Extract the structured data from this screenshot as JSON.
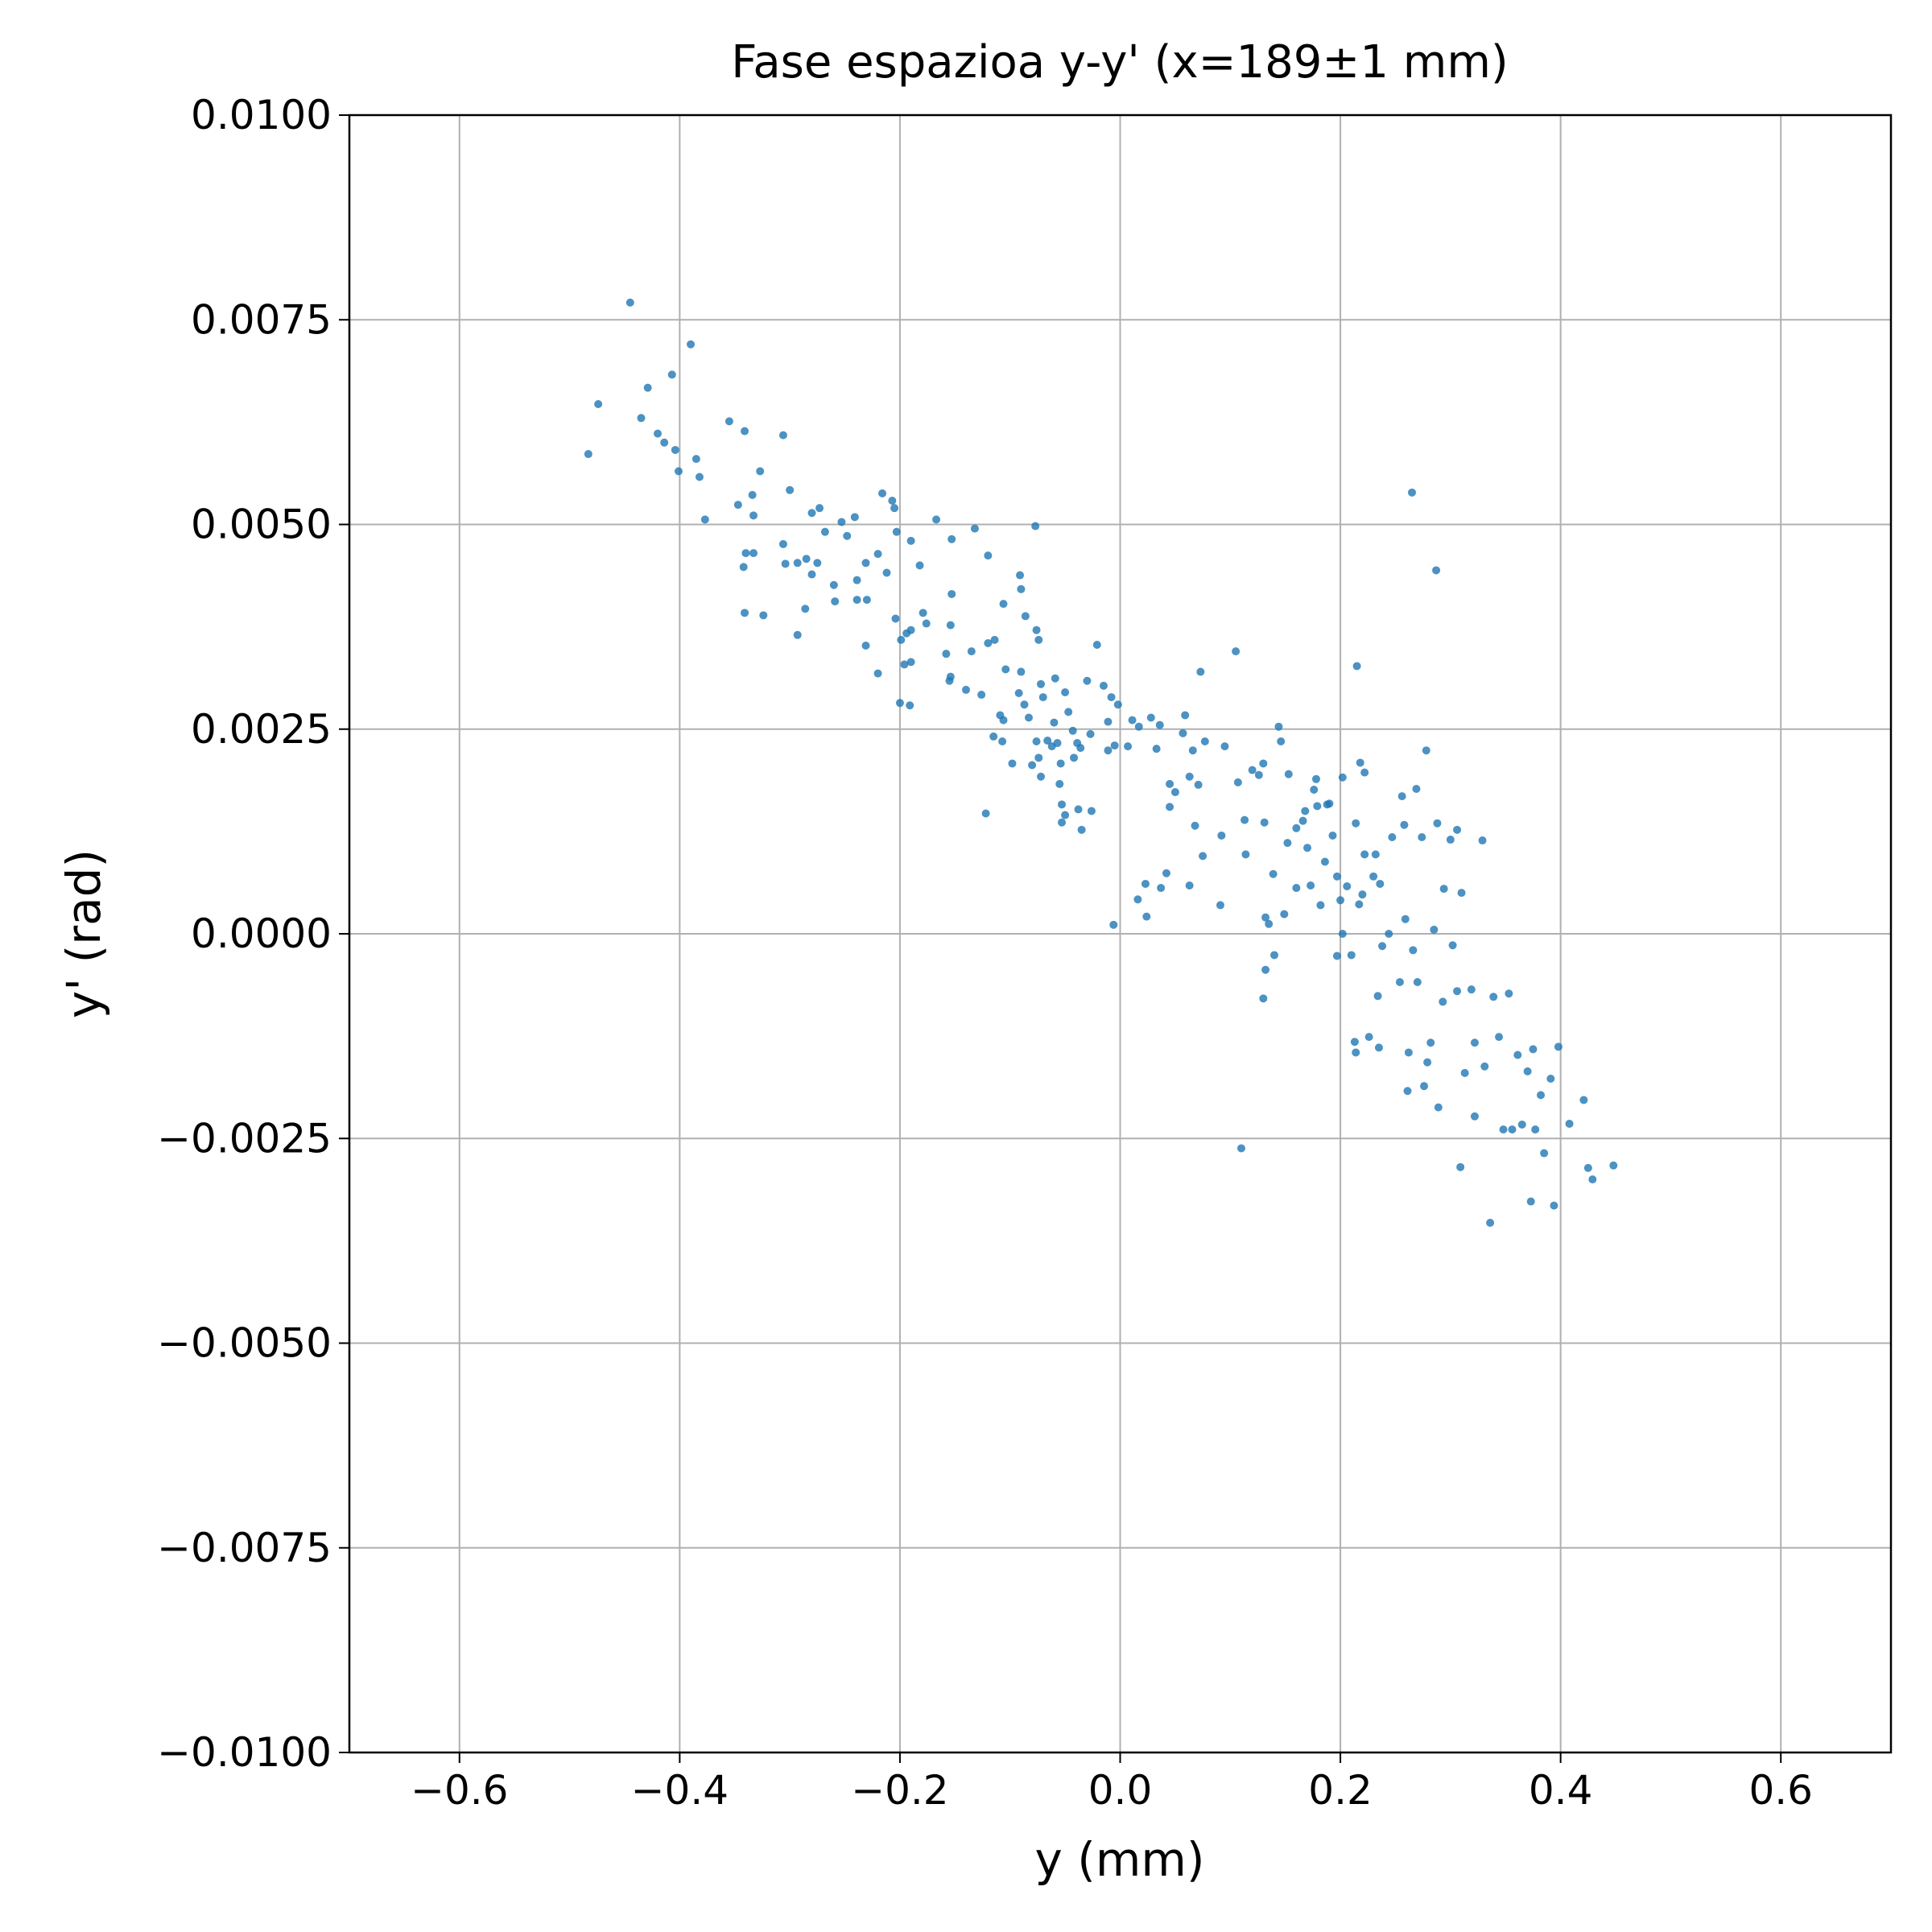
{
  "chart_data": {
    "type": "scatter",
    "title": "Fase espazioa y-y' (x=189±1 mm)",
    "x_label": "y (mm)",
    "y_label": "y' (rad)",
    "color": "#1f77b4",
    "grid": true,
    "xlim": [
      -0.7,
      0.7
    ],
    "ylim": [
      -0.01,
      0.01
    ],
    "xticks": [
      {
        "value": -0.6,
        "label": "−0.6"
      },
      {
        "value": -0.4,
        "label": "−0.4"
      },
      {
        "value": -0.2,
        "label": "−0.2"
      },
      {
        "value": 0,
        "label": "0.0"
      },
      0.2,
      0.4,
      0.6
    ],
    "yticks": [
      {
        "value": -0.01,
        "label": "−0.0100"
      },
      {
        "value": -0.0075,
        "label": "−0.0075"
      },
      {
        "value": -0.005,
        "label": "−0.0050"
      },
      {
        "value": -0.0025,
        "label": "−0.0025"
      },
      {
        "value": 0,
        "label": "0.0000"
      },
      0.0025,
      {
        "value": 0.005,
        "label": "0.0050"
      },
      0.0075,
      {
        "value": 0.01,
        "label": "0.0100"
      }
    ],
    "x": [
      -0.445,
      -0.474,
      -0.483,
      -0.429,
      -0.39,
      -0.407,
      -0.435,
      -0.42,
      -0.414,
      -0.404,
      -0.401,
      -0.385,
      -0.382,
      -0.377,
      -0.355,
      -0.341,
      -0.306,
      -0.327,
      -0.334,
      -0.347,
      -0.333,
      -0.3,
      -0.34,
      -0.333,
      -0.342,
      -0.306,
      -0.304,
      -0.341,
      -0.324,
      -0.293,
      -0.285,
      -0.28,
      -0.275,
      -0.28,
      -0.273,
      -0.268,
      -0.253,
      -0.248,
      -0.241,
      -0.286,
      -0.293,
      -0.26,
      -0.259,
      -0.239,
      -0.239,
      -0.231,
      -0.23,
      -0.231,
      -0.22,
      -0.216,
      -0.207,
      -0.205,
      -0.203,
      -0.19,
      -0.212,
      -0.22,
      -0.204,
      -0.199,
      -0.194,
      -0.19,
      -0.196,
      -0.19,
      -0.2,
      -0.191,
      -0.182,
      -0.179,
      -0.176,
      -0.167,
      -0.153,
      -0.153,
      -0.154,
      -0.158,
      -0.154,
      -0.155,
      -0.14,
      -0.132,
      -0.135,
      -0.126,
      -0.12,
      -0.12,
      -0.114,
      -0.106,
      -0.104,
      -0.115,
      -0.122,
      -0.109,
      -0.106,
      -0.107,
      -0.098,
      -0.091,
      -0.09,
      -0.09,
      -0.092,
      -0.087,
      -0.086,
      -0.077,
      -0.076,
      -0.074,
      -0.072,
      -0.07,
      -0.076,
      -0.074,
      -0.072,
      -0.08,
      -0.083,
      -0.066,
      -0.062,
      -0.059,
      -0.06,
      -0.057,
      -0.055,
      -0.053,
      -0.053,
      -0.05,
      -0.054,
      -0.05,
      -0.047,
      -0.043,
      -0.039,
      -0.042,
      -0.036,
      -0.038,
      -0.035,
      -0.03,
      -0.027,
      -0.026,
      -0.021,
      -0.015,
      -0.011,
      -0.011,
      -0.008,
      -0.002,
      -0.006,
      -0.005,
      0.007,
      0.011,
      0.017,
      0.016,
      0.023,
      0.024,
      0.028,
      0.036,
      0.033,
      0.037,
      0.042,
      0.045,
      0.045,
      0.05,
      0.057,
      0.059,
      0.063,
      0.066,
      0.068,
      0.071,
      0.073,
      0.063,
      0.075,
      0.077,
      0.092,
      0.095,
      0.091,
      0.105,
      0.107,
      0.11,
      0.113,
      0.114,
      0.12,
      0.126,
      0.13,
      0.131,
      0.132,
      0.13,
      0.132,
      0.135,
      0.14,
      0.139,
      0.144,
      0.146,
      0.149,
      0.152,
      0.153,
      0.16,
      0.16,
      0.166,
      0.168,
      0.17,
      0.173,
      0.176,
      0.178,
      0.179,
      0.182,
      0.186,
      0.188,
      0.19,
      0.193,
      0.197,
      0.197,
      0.2,
      0.202,
      0.202,
      0.206,
      0.21,
      0.213,
      0.214,
      0.215,
      0.214,
      0.217,
      0.218,
      0.22,
      0.222,
      0.222,
      0.226,
      0.23,
      0.232,
      0.234,
      0.235,
      0.236,
      0.238,
      0.244,
      0.247,
      0.254,
      0.256,
      0.258,
      0.259,
      0.261,
      0.262,
      0.265,
      0.266,
      0.269,
      0.27,
      0.274,
      0.276,
      0.278,
      0.279,
      0.282,
      0.285,
      0.287,
      0.288,
      0.289,
      0.293,
      0.294,
      0.3,
      0.302,
      0.306,
      0.306,
      0.309,
      0.31,
      0.313,
      0.319,
      0.322,
      0.322,
      0.329,
      0.331,
      0.336,
      0.339,
      0.344,
      0.348,
      0.353,
      0.356,
      0.361,
      0.365,
      0.37,
      0.373,
      0.375,
      0.377,
      0.382,
      0.385,
      0.391,
      0.394,
      0.398,
      0.408,
      0.421,
      0.425,
      0.429,
      0.448
    ],
    "values": [
      0.00771,
      0.00647,
      0.00586,
      0.00667,
      0.0072,
      0.00683,
      0.0063,
      0.00611,
      0.006,
      0.00591,
      0.00565,
      0.0058,
      0.00558,
      0.00506,
      0.00626,
      0.00614,
      0.00609,
      0.00565,
      0.00536,
      0.00524,
      0.00511,
      0.00542,
      0.00465,
      0.00465,
      0.00448,
      0.00476,
      0.00452,
      0.00392,
      0.00389,
      0.00453,
      0.00458,
      0.00439,
      0.00453,
      0.00514,
      0.0052,
      0.00491,
      0.00503,
      0.00486,
      0.00509,
      0.00397,
      0.00365,
      0.00426,
      0.00406,
      0.00432,
      0.00408,
      0.00453,
      0.00408,
      0.00352,
      0.00464,
      0.00538,
      0.00529,
      0.0052,
      0.00491,
      0.0048,
      0.00441,
      0.00318,
      0.00385,
      0.00359,
      0.00367,
      0.00371,
      0.00329,
      0.00332,
      0.00282,
      0.00279,
      0.0045,
      0.00392,
      0.00379,
      0.00506,
      0.00482,
      0.00415,
      0.00377,
      0.00342,
      0.00314,
      0.00309,
      0.00298,
      0.00495,
      0.00345,
      0.00292,
      0.00462,
      0.00355,
      0.00359,
      0.00403,
      0.00323,
      0.00241,
      0.00147,
      0.00267,
      0.00261,
      0.00235,
      0.00208,
      0.00438,
      0.00421,
      0.0032,
      0.00294,
      0.0028,
      0.00388,
      0.00498,
      0.00371,
      0.00359,
      0.00305,
      0.00289,
      0.00235,
      0.00215,
      0.00192,
      0.00206,
      0.00264,
      0.00236,
      0.00229,
      0.00312,
      0.00258,
      0.00233,
      0.00183,
      0.00158,
      0.00136,
      0.00145,
      0.00208,
      0.00295,
      0.00271,
      0.00248,
      0.00233,
      0.00215,
      0.00227,
      0.00152,
      0.00127,
      0.00309,
      0.00244,
      0.0015,
      0.00353,
      0.00303,
      0.00259,
      0.00224,
      0.00289,
      0.0028,
      0.00011,
      0.0023,
      0.00229,
      0.00261,
      0.00253,
      0.00042,
      0.00061,
      0.00021,
      0.00264,
      0.00255,
      0.00226,
      0.00056,
      0.00074,
      0.00183,
      0.00155,
      0.00173,
      0.00245,
      0.00267,
      0.00192,
      0.00224,
      0.00132,
      0.00182,
      0.0032,
      0.00059,
      0.00095,
      0.00235,
      0.0012,
      0.00229,
      0.00035,
      0.00345,
      0.00185,
      -0.00262,
      0.00139,
      0.00097,
      0.002,
      0.00194,
      0.00208,
      0.00136,
      0.0002,
      -0.00079,
      -0.00044,
      0.00012,
      -0.00026,
      0.00073,
      0.00253,
      0.00235,
      0.00024,
      0.00111,
      0.00195,
      0.00056,
      0.00129,
      0.00138,
      0.0015,
      0.00105,
      0.00059,
      0.00176,
      0.00189,
      0.00156,
      0.00035,
      0.00088,
      0.00158,
      0.00159,
      0.0012,
      -0.00027,
      0.0007,
      0.00041,
      0.00191,
      0.0,
      0.00058,
      -0.00026,
      -0.00132,
      -0.00145,
      0.00327,
      0.00135,
      0.00036,
      0.00209,
      0.00048,
      0.00197,
      0.00097,
      -0.00126,
      0.0007,
      0.00097,
      -0.00076,
      -0.00139,
      0.00061,
      -0.00015,
      0.0,
      0.00118,
      -0.00059,
      0.00168,
      0.00133,
      0.00018,
      -0.00192,
      -0.00145,
      0.00539,
      -0.0002,
      0.00177,
      -0.00059,
      0.00118,
      -0.00186,
      0.00224,
      -0.00157,
      -0.00133,
      5e-05,
      0.00444,
      0.00135,
      -0.00212,
      -0.00083,
      0.00055,
      0.00115,
      -0.00014,
      0.00127,
      -0.0007,
      -0.00285,
      0.0005,
      -0.0017,
      -0.00068,
      -0.00133,
      -0.00223,
      0.00114,
      -0.00162,
      -0.00353,
      -0.00077,
      -0.00126,
      -0.00239,
      -0.00073,
      -0.00239,
      -0.00148,
      -0.00233,
      -0.00168,
      -0.00327,
      -0.00141,
      -0.00239,
      -0.00197,
      -0.00268,
      -0.00177,
      -0.00332,
      -0.00138,
      -0.00232,
      -0.00203,
      -0.00286,
      -0.003,
      -0.00283
    ]
  }
}
